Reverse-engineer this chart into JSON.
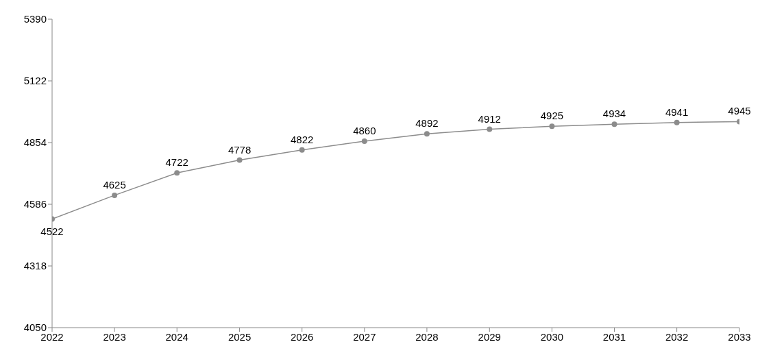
{
  "chart_data": {
    "type": "line",
    "x": [
      "2022",
      "2023",
      "2024",
      "2025",
      "2026",
      "2027",
      "2028",
      "2029",
      "2030",
      "2031",
      "2032",
      "2033"
    ],
    "values": [
      4522,
      4625,
      4722,
      4778,
      4822,
      4860,
      4892,
      4912,
      4925,
      4934,
      4941,
      4945
    ],
    "color": "#8c8c8c",
    "xlim": [
      "2022",
      "2033"
    ],
    "xticks": [
      "2022",
      "2023",
      "2024",
      "2025",
      "2026",
      "2027",
      "2028",
      "2029",
      "2030",
      "2031",
      "2032",
      "2033"
    ],
    "ylim": [
      4050,
      5390
    ],
    "yticks": [
      4050,
      4318,
      4586,
      4854,
      5122,
      5390
    ],
    "grid": false,
    "legend": false,
    "marker": "circle",
    "line_style": "solid",
    "data_labels": true
  }
}
